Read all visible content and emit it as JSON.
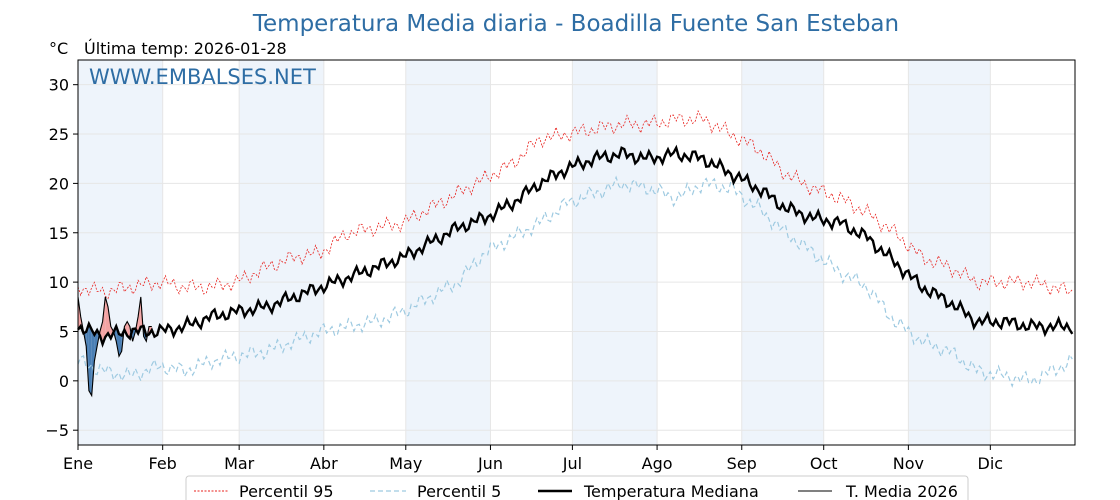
{
  "chart_data": {
    "type": "line",
    "title": "Temperatura Media diaria - Boadilla Fuente San Esteban",
    "unit_label": "°C",
    "subtitle": "Última temp: 2026-01-28",
    "watermark": "WWW.EMBALSES.NET",
    "ylim": [
      -6.5,
      32.5
    ],
    "yticks": [
      -5,
      0,
      5,
      10,
      15,
      20,
      25,
      30
    ],
    "ytick_labels": [
      "−5",
      "0",
      "5",
      "10",
      "15",
      "20",
      "25",
      "30"
    ],
    "x_months": [
      "Ene",
      "Feb",
      "Mar",
      "Abr",
      "May",
      "Jun",
      "Jul",
      "Ago",
      "Sep",
      "Oct",
      "Nov",
      "Dic"
    ],
    "grid": true,
    "legend_position": "bottom",
    "legend": [
      "Percentil 95",
      "Percentil 5",
      "Temperatura Mediana",
      "T. Media 2026"
    ],
    "colors": {
      "title": "#2e6da4",
      "p95": "#e8211d",
      "p5": "#9ecae1",
      "median": "#000000",
      "current": "#000000",
      "above_fill": "#f4a3a3",
      "below_fill": "#4a7fb5",
      "shade": "#eef4fb"
    },
    "series": [
      {
        "name": "Percentil 95",
        "x": [
          1,
          10,
          20,
          31,
          40,
          50,
          59,
          70,
          80,
          90,
          100,
          110,
          120,
          130,
          140,
          150,
          160,
          170,
          180,
          190,
          200,
          210,
          220,
          230,
          240,
          250,
          260,
          270,
          280,
          290,
          300,
          310,
          320,
          330,
          340,
          350,
          365
        ],
        "values": [
          9.5,
          9.0,
          9.5,
          10.0,
          9.5,
          9.5,
          10.0,
          11.5,
          12.5,
          13.0,
          15.0,
          15.5,
          16.0,
          17.5,
          19.0,
          20.5,
          22.0,
          24.5,
          25.0,
          25.5,
          26.0,
          26.0,
          26.5,
          26.5,
          25.0,
          23.5,
          21.0,
          19.5,
          18.5,
          17.0,
          15.0,
          12.5,
          11.5,
          10.0,
          10.0,
          10.0,
          9.0
        ]
      },
      {
        "name": "Percentil 5",
        "x": [
          1,
          10,
          20,
          31,
          40,
          50,
          59,
          70,
          80,
          90,
          100,
          110,
          120,
          130,
          140,
          150,
          160,
          170,
          180,
          190,
          200,
          210,
          220,
          230,
          240,
          250,
          260,
          270,
          280,
          290,
          300,
          310,
          320,
          330,
          340,
          350,
          365
        ],
        "values": [
          2.0,
          1.0,
          0.5,
          1.5,
          1.0,
          2.0,
          2.5,
          3.0,
          4.0,
          5.0,
          5.5,
          6.0,
          7.0,
          8.5,
          10.0,
          13.0,
          14.5,
          16.0,
          18.0,
          19.0,
          20.0,
          19.5,
          18.5,
          20.0,
          19.5,
          17.5,
          15.0,
          13.0,
          11.0,
          9.5,
          6.0,
          4.0,
          3.0,
          1.0,
          0.5,
          0.0,
          2.0
        ]
      },
      {
        "name": "Temperatura Mediana",
        "x": [
          1,
          10,
          20,
          31,
          40,
          50,
          59,
          70,
          80,
          90,
          100,
          110,
          120,
          130,
          140,
          150,
          160,
          170,
          180,
          190,
          200,
          210,
          220,
          230,
          240,
          250,
          260,
          270,
          280,
          290,
          300,
          310,
          320,
          330,
          340,
          350,
          365
        ],
        "values": [
          5.5,
          4.5,
          5.0,
          5.0,
          5.5,
          6.5,
          7.0,
          7.5,
          8.5,
          9.5,
          10.5,
          11.5,
          12.5,
          14.0,
          15.5,
          16.5,
          18.0,
          20.0,
          21.5,
          22.5,
          23.0,
          22.5,
          23.0,
          22.5,
          21.0,
          19.5,
          17.5,
          16.5,
          16.0,
          14.5,
          12.0,
          9.5,
          8.0,
          6.0,
          6.0,
          5.5,
          5.5
        ]
      },
      {
        "name": "T. Media 2026",
        "x": [
          1,
          2,
          3,
          4,
          5,
          6,
          7,
          8,
          9,
          10,
          11,
          12,
          13,
          14,
          15,
          16,
          17,
          18,
          19,
          20,
          21,
          22,
          23,
          24,
          25,
          26,
          27,
          28
        ],
        "values": [
          8.5,
          6.5,
          5.0,
          3.5,
          -1.0,
          -1.5,
          2.0,
          3.5,
          5.0,
          6.0,
          8.5,
          7.5,
          5.5,
          5.0,
          4.0,
          2.5,
          3.0,
          5.5,
          6.0,
          5.5,
          4.0,
          5.0,
          6.5,
          8.5,
          4.5,
          4.0,
          5.5,
          5.5
        ]
      }
    ]
  }
}
